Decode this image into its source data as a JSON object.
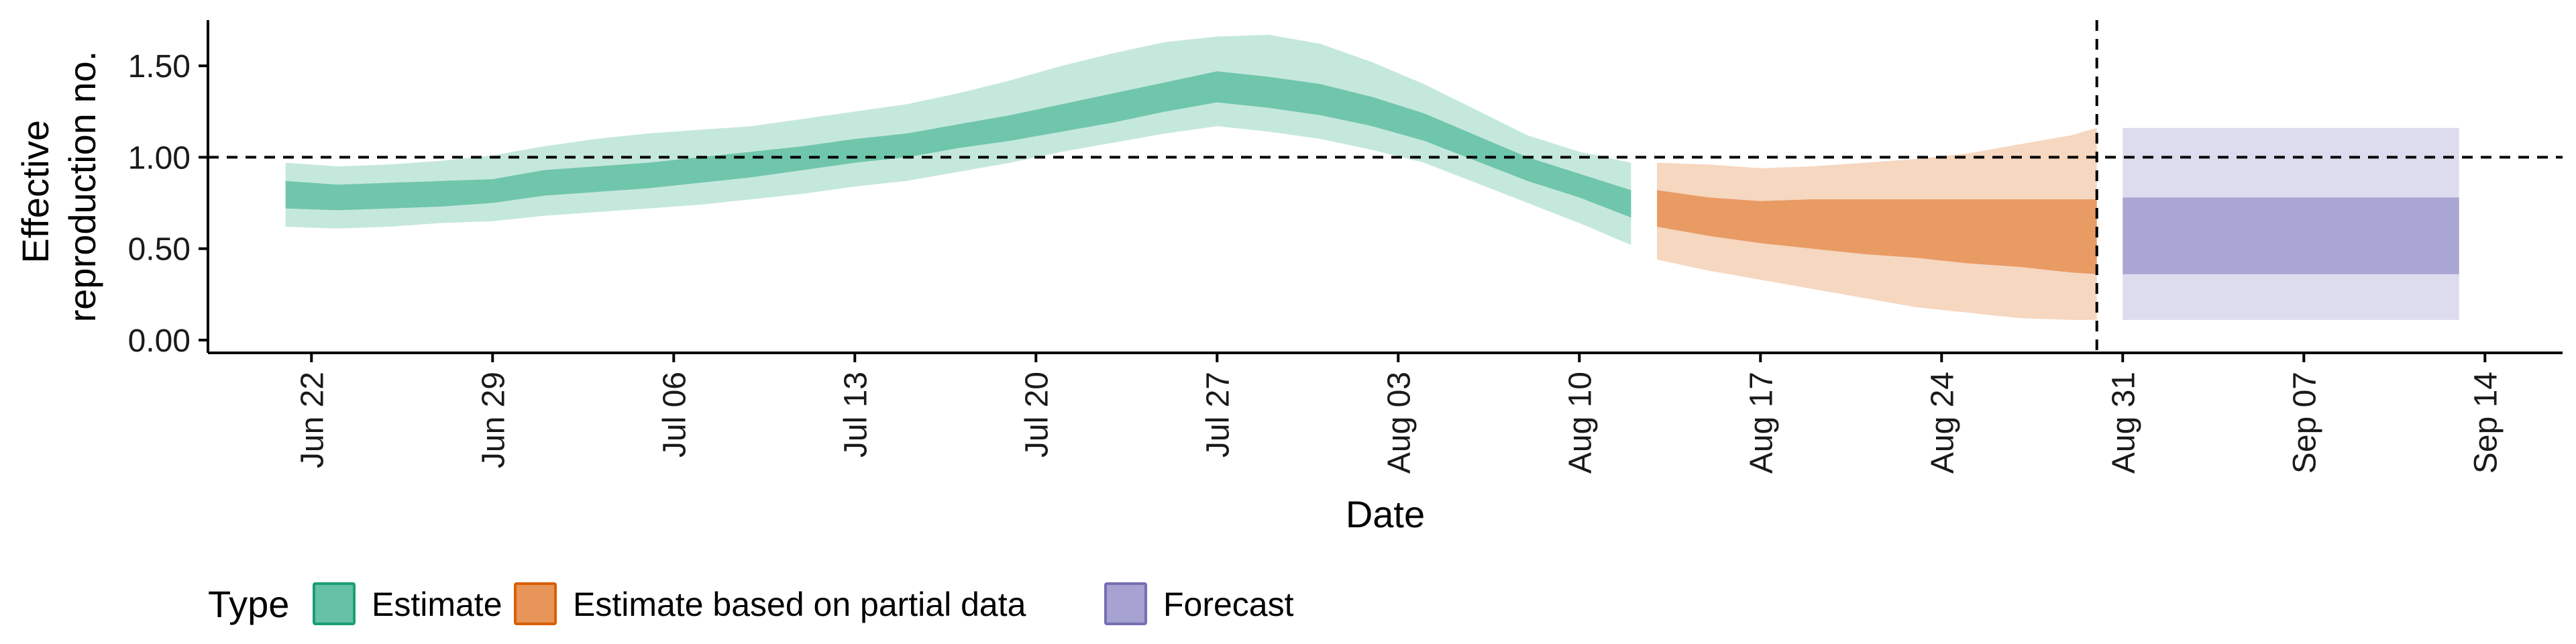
{
  "chart_data": {
    "type": "area",
    "xlabel": "Date",
    "ylabel_lines": [
      "Effective",
      "reproduction no."
    ],
    "x_domain": [
      "2020-06-18",
      "2020-09-17"
    ],
    "ylim": [
      -0.07,
      1.75
    ],
    "y_ticks": [
      {
        "value": 0.0,
        "label": "0.00"
      },
      {
        "value": 0.5,
        "label": "0.50"
      },
      {
        "value": 1.0,
        "label": "1.00"
      },
      {
        "value": 1.5,
        "label": "1.50"
      }
    ],
    "x_ticks": [
      {
        "date": "2020-06-22",
        "label": "Jun 22"
      },
      {
        "date": "2020-06-29",
        "label": "Jun 29"
      },
      {
        "date": "2020-07-06",
        "label": "Jul 06"
      },
      {
        "date": "2020-07-13",
        "label": "Jul 13"
      },
      {
        "date": "2020-07-20",
        "label": "Jul 20"
      },
      {
        "date": "2020-07-27",
        "label": "Jul 27"
      },
      {
        "date": "2020-08-03",
        "label": "Aug 03"
      },
      {
        "date": "2020-08-10",
        "label": "Aug 10"
      },
      {
        "date": "2020-08-17",
        "label": "Aug 17"
      },
      {
        "date": "2020-08-24",
        "label": "Aug 24"
      },
      {
        "date": "2020-08-31",
        "label": "Aug 31"
      },
      {
        "date": "2020-09-07",
        "label": "Sep 07"
      },
      {
        "date": "2020-09-14",
        "label": "Sep 14"
      }
    ],
    "hline": 1.0,
    "vline": "2020-08-30",
    "grid": false,
    "legend": {
      "title": "Type",
      "position": "bottom",
      "items": [
        {
          "label": "Estimate",
          "fill": "#66C2A5",
          "stroke": "#1B9E77"
        },
        {
          "label": "Estimate based on partial data",
          "fill": "#E8955A",
          "stroke": "#D95F02"
        },
        {
          "label": "Forecast",
          "fill": "#A6A2D1",
          "stroke": "#7570B3"
        }
      ]
    },
    "series": [
      {
        "name": "Estimate",
        "color": "#66C2A5",
        "outer_opacity": 0.38,
        "inner_opacity": 0.9,
        "points": [
          {
            "date": "2020-06-21",
            "lo90": 0.62,
            "lo50": 0.72,
            "hi50": 0.87,
            "hi90": 0.97
          },
          {
            "date": "2020-06-23",
            "lo90": 0.61,
            "lo50": 0.71,
            "hi50": 0.85,
            "hi90": 0.95
          },
          {
            "date": "2020-06-25",
            "lo90": 0.62,
            "lo50": 0.72,
            "hi50": 0.86,
            "hi90": 0.96
          },
          {
            "date": "2020-06-27",
            "lo90": 0.64,
            "lo50": 0.73,
            "hi50": 0.87,
            "hi90": 0.98
          },
          {
            "date": "2020-06-29",
            "lo90": 0.65,
            "lo50": 0.75,
            "hi50": 0.88,
            "hi90": 1.01
          },
          {
            "date": "2020-07-01",
            "lo90": 0.68,
            "lo50": 0.79,
            "hi50": 0.93,
            "hi90": 1.06
          },
          {
            "date": "2020-07-03",
            "lo90": 0.7,
            "lo50": 0.81,
            "hi50": 0.95,
            "hi90": 1.1
          },
          {
            "date": "2020-07-05",
            "lo90": 0.72,
            "lo50": 0.83,
            "hi50": 0.97,
            "hi90": 1.13
          },
          {
            "date": "2020-07-07",
            "lo90": 0.74,
            "lo50": 0.86,
            "hi50": 1.0,
            "hi90": 1.15
          },
          {
            "date": "2020-07-09",
            "lo90": 0.77,
            "lo50": 0.89,
            "hi50": 1.03,
            "hi90": 1.17
          },
          {
            "date": "2020-07-11",
            "lo90": 0.8,
            "lo50": 0.93,
            "hi50": 1.06,
            "hi90": 1.21
          },
          {
            "date": "2020-07-13",
            "lo90": 0.84,
            "lo50": 0.97,
            "hi50": 1.1,
            "hi90": 1.25
          },
          {
            "date": "2020-07-15",
            "lo90": 0.87,
            "lo50": 1.0,
            "hi50": 1.13,
            "hi90": 1.29
          },
          {
            "date": "2020-07-17",
            "lo90": 0.92,
            "lo50": 1.05,
            "hi50": 1.18,
            "hi90": 1.35
          },
          {
            "date": "2020-07-19",
            "lo90": 0.97,
            "lo50": 1.09,
            "hi50": 1.23,
            "hi90": 1.42
          },
          {
            "date": "2020-07-21",
            "lo90": 1.03,
            "lo50": 1.14,
            "hi50": 1.29,
            "hi90": 1.5
          },
          {
            "date": "2020-07-23",
            "lo90": 1.08,
            "lo50": 1.19,
            "hi50": 1.35,
            "hi90": 1.57
          },
          {
            "date": "2020-07-25",
            "lo90": 1.13,
            "lo50": 1.25,
            "hi50": 1.41,
            "hi90": 1.63
          },
          {
            "date": "2020-07-27",
            "lo90": 1.17,
            "lo50": 1.3,
            "hi50": 1.47,
            "hi90": 1.66
          },
          {
            "date": "2020-07-29",
            "lo90": 1.14,
            "lo50": 1.27,
            "hi50": 1.44,
            "hi90": 1.67
          },
          {
            "date": "2020-07-31",
            "lo90": 1.1,
            "lo50": 1.23,
            "hi50": 1.4,
            "hi90": 1.62
          },
          {
            "date": "2020-08-02",
            "lo90": 1.04,
            "lo50": 1.17,
            "hi50": 1.33,
            "hi90": 1.52
          },
          {
            "date": "2020-08-04",
            "lo90": 0.97,
            "lo50": 1.09,
            "hi50": 1.24,
            "hi90": 1.4
          },
          {
            "date": "2020-08-06",
            "lo90": 0.86,
            "lo50": 0.98,
            "hi50": 1.12,
            "hi90": 1.26
          },
          {
            "date": "2020-08-08",
            "lo90": 0.75,
            "lo50": 0.87,
            "hi50": 1.0,
            "hi90": 1.12
          },
          {
            "date": "2020-08-10",
            "lo90": 0.64,
            "lo50": 0.78,
            "hi50": 0.91,
            "hi90": 1.03
          },
          {
            "date": "2020-08-12",
            "lo90": 0.52,
            "lo50": 0.67,
            "hi50": 0.82,
            "hi90": 0.97
          }
        ]
      },
      {
        "name": "Estimate based on partial data",
        "color": "#E8955A",
        "outer_opacity": 0.38,
        "inner_opacity": 0.9,
        "points": [
          {
            "date": "2020-08-13",
            "lo90": 0.44,
            "lo50": 0.62,
            "hi50": 0.82,
            "hi90": 0.97
          },
          {
            "date": "2020-08-15",
            "lo90": 0.38,
            "lo50": 0.57,
            "hi50": 0.78,
            "hi90": 0.96
          },
          {
            "date": "2020-08-17",
            "lo90": 0.33,
            "lo50": 0.53,
            "hi50": 0.76,
            "hi90": 0.94
          },
          {
            "date": "2020-08-19",
            "lo90": 0.28,
            "lo50": 0.5,
            "hi50": 0.77,
            "hi90": 0.95
          },
          {
            "date": "2020-08-21",
            "lo90": 0.23,
            "lo50": 0.47,
            "hi50": 0.77,
            "hi90": 0.97
          },
          {
            "date": "2020-08-23",
            "lo90": 0.18,
            "lo50": 0.45,
            "hi50": 0.77,
            "hi90": 0.99
          },
          {
            "date": "2020-08-25",
            "lo90": 0.15,
            "lo50": 0.42,
            "hi50": 0.77,
            "hi90": 1.02
          },
          {
            "date": "2020-08-27",
            "lo90": 0.12,
            "lo50": 0.4,
            "hi50": 0.77,
            "hi90": 1.07
          },
          {
            "date": "2020-08-29",
            "lo90": 0.11,
            "lo50": 0.37,
            "hi50": 0.77,
            "hi90": 1.12
          },
          {
            "date": "2020-08-30",
            "lo90": 0.11,
            "lo50": 0.36,
            "hi50": 0.77,
            "hi90": 1.16
          }
        ]
      },
      {
        "name": "Forecast",
        "color": "#A6A2D1",
        "outer_opacity": 0.38,
        "inner_opacity": 0.95,
        "points": [
          {
            "date": "2020-08-31",
            "lo90": 0.11,
            "lo50": 0.36,
            "hi50": 0.78,
            "hi90": 1.16
          },
          {
            "date": "2020-09-13",
            "lo90": 0.11,
            "lo50": 0.36,
            "hi50": 0.78,
            "hi90": 1.16
          }
        ]
      }
    ]
  }
}
